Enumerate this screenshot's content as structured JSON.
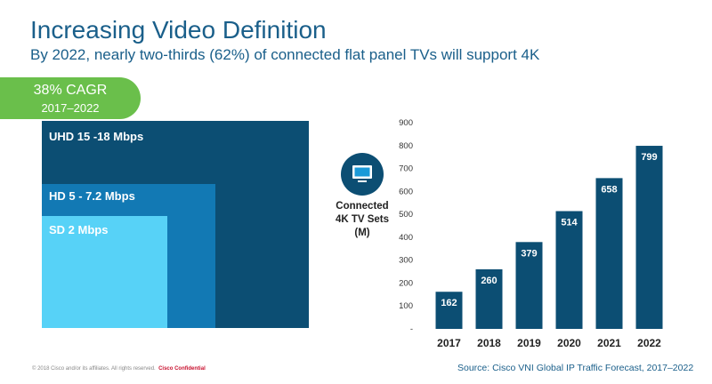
{
  "header": {
    "title": "Increasing Video Definition",
    "subtitle": "By 2022, nearly two-thirds (62%) of connected flat panel TVs will support 4K"
  },
  "cagr": {
    "rate": "38% CAGR",
    "period": "2017–2022"
  },
  "definitions": {
    "uhd": "UHD 15 -18 Mbps",
    "hd": "HD 5 - 7.2 Mbps",
    "sd": "SD 2 Mbps"
  },
  "colors": {
    "uhd": "#0c4e73",
    "hd": "#1279b4",
    "sd": "#57d2f7",
    "cagr": "#6abf4b",
    "bar": "#0c4e73",
    "title": "#1a5f8a"
  },
  "tv_icon": "tv-icon",
  "chart_data": {
    "type": "bar",
    "ylabel_lines": [
      "Connected",
      "4K TV Sets",
      "(M)"
    ],
    "categories": [
      "2017",
      "2018",
      "2019",
      "2020",
      "2021",
      "2022"
    ],
    "values": [
      162,
      260,
      379,
      514,
      658,
      799
    ],
    "ylim": [
      0,
      900
    ],
    "yticks": [
      "-",
      "100",
      "200",
      "300",
      "400",
      "500",
      "600",
      "700",
      "800",
      "900"
    ],
    "grid": false,
    "data_labels": true
  },
  "footer": {
    "source": "Source: Cisco VNI Global IP Traffic Forecast, 2017–2022",
    "copyright": "© 2018  Cisco and/or its affiliates. All rights reserved.",
    "confidential": "Cisco Confidential"
  }
}
